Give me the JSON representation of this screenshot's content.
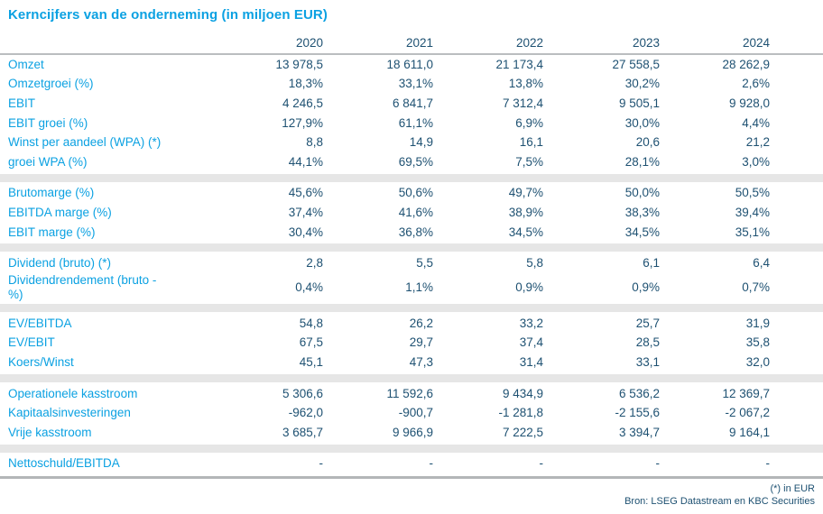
{
  "title": "Kerncijfers van de onderneming (in miljoen EUR)",
  "colors": {
    "accent_blue": "#0ba1e2",
    "value_navy": "#1e5172",
    "band_gray": "#e6e6e6",
    "header_line_gray": "#babdbf",
    "bottom_line_gray": "#b3b6b8"
  },
  "footer": {
    "unit_note": "(*) in EUR",
    "source": "Bron: LSEG Datastream en KBC Securities"
  },
  "chart_data": {
    "type": "table",
    "title": "Kerncijfers van de onderneming (in miljoen EUR)",
    "unit_note": "(*) in EUR",
    "source": "Bron: LSEG Datastream en KBC Securities",
    "columns": [
      "2020",
      "2021",
      "2022",
      "2023",
      "2024"
    ],
    "sections": [
      {
        "rows": [
          {
            "label": "Omzet",
            "values": [
              "13 978,5",
              "18 611,0",
              "21 173,4",
              "27 558,5",
              "28 262,9"
            ]
          },
          {
            "label": "Omzetgroei (%)",
            "values": [
              "18,3%",
              "33,1%",
              "13,8%",
              "30,2%",
              "2,6%"
            ]
          },
          {
            "label": "EBIT",
            "values": [
              "4 246,5",
              "6 841,7",
              "7 312,4",
              "9 505,1",
              "9 928,0"
            ]
          },
          {
            "label": "EBIT groei (%)",
            "values": [
              "127,9%",
              "61,1%",
              "6,9%",
              "30,0%",
              "4,4%"
            ]
          },
          {
            "label": "Winst per aandeel (WPA) (*)",
            "values": [
              "8,8",
              "14,9",
              "16,1",
              "20,6",
              "21,2"
            ]
          },
          {
            "label": "groei WPA (%)",
            "values": [
              "44,1%",
              "69,5%",
              "7,5%",
              "28,1%",
              "3,0%"
            ]
          }
        ]
      },
      {
        "rows": [
          {
            "label": "Brutomarge (%)",
            "values": [
              "45,6%",
              "50,6%",
              "49,7%",
              "50,0%",
              "50,5%"
            ]
          },
          {
            "label": "EBITDA marge (%)",
            "values": [
              "37,4%",
              "41,6%",
              "38,9%",
              "38,3%",
              "39,4%"
            ]
          },
          {
            "label": "EBIT marge (%)",
            "values": [
              "30,4%",
              "36,8%",
              "34,5%",
              "34,5%",
              "35,1%"
            ]
          }
        ]
      },
      {
        "rows": [
          {
            "label": "Dividend (bruto) (*)",
            "values": [
              "2,8",
              "5,5",
              "5,8",
              "6,1",
              "6,4"
            ]
          },
          {
            "label": "Dividendrendement (bruto -\n%)",
            "values": [
              "0,4%",
              "1,1%",
              "0,9%",
              "0,9%",
              "0,7%"
            ]
          }
        ]
      },
      {
        "rows": [
          {
            "label": "EV/EBITDA",
            "values": [
              "54,8",
              "26,2",
              "33,2",
              "25,7",
              "31,9"
            ]
          },
          {
            "label": "EV/EBIT",
            "values": [
              "67,5",
              "29,7",
              "37,4",
              "28,5",
              "35,8"
            ]
          },
          {
            "label": "Koers/Winst",
            "values": [
              "45,1",
              "47,3",
              "31,4",
              "33,1",
              "32,0"
            ]
          }
        ]
      },
      {
        "rows": [
          {
            "label": "Operationele kasstroom",
            "values": [
              "5 306,6",
              "11 592,6",
              "9 434,9",
              "6 536,2",
              "12 369,7"
            ]
          },
          {
            "label": "Kapitaalsinvesteringen",
            "values": [
              "-962,0",
              "-900,7",
              "-1 281,8",
              "-2 155,6",
              "-2 067,2"
            ]
          },
          {
            "label": "Vrije kasstroom",
            "values": [
              "3 685,7",
              "9 966,9",
              "7 222,5",
              "3 394,7",
              "9 164,1"
            ]
          }
        ]
      },
      {
        "rows": [
          {
            "label": "Nettoschuld/EBITDA",
            "values": [
              "-",
              "-",
              "-",
              "-",
              "-"
            ]
          }
        ]
      }
    ]
  }
}
